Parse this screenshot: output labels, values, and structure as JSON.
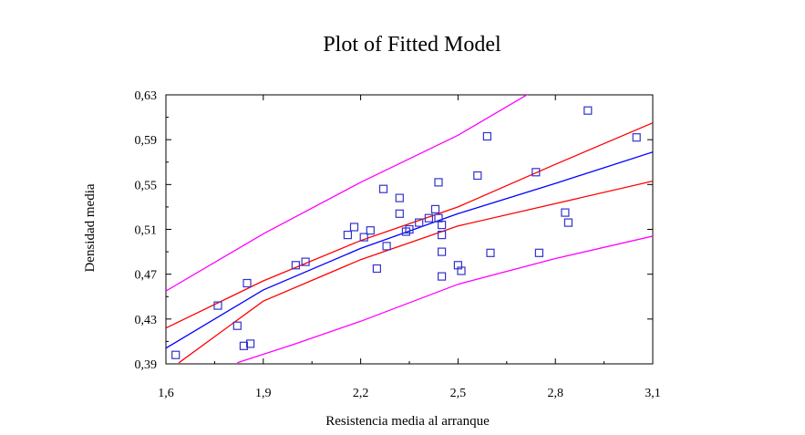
{
  "chart_data": {
    "type": "scatter",
    "title": "Plot of Fitted Model",
    "xlabel": "Resistencia media al arranque",
    "ylabel": "Densidad media",
    "xlim": [
      1.6,
      3.1
    ],
    "ylim": [
      0.39,
      0.63
    ],
    "xticks": [
      1.6,
      1.9,
      2.2,
      2.5,
      2.8,
      3.1
    ],
    "yticks": [
      0.39,
      0.43,
      0.47,
      0.51,
      0.55,
      0.59,
      0.63
    ],
    "xtick_labels": [
      "1,6",
      "1,9",
      "2,2",
      "2,5",
      "2,8",
      "3,1"
    ],
    "ytick_labels": [
      "0,39",
      "0,43",
      "0,47",
      "0,51",
      "0,55",
      "0,59",
      "0,63"
    ],
    "grid": false,
    "colors": {
      "points": "#3333cc",
      "fit": "#0000ff",
      "confidence": "#ff0000",
      "prediction": "#ff00ff",
      "axis": "#000000"
    },
    "points": [
      {
        "x": 1.63,
        "y": 0.398
      },
      {
        "x": 1.76,
        "y": 0.442
      },
      {
        "x": 1.82,
        "y": 0.424
      },
      {
        "x": 1.84,
        "y": 0.406
      },
      {
        "x": 1.86,
        "y": 0.408
      },
      {
        "x": 1.85,
        "y": 0.462
      },
      {
        "x": 2.0,
        "y": 0.478
      },
      {
        "x": 2.03,
        "y": 0.481
      },
      {
        "x": 2.16,
        "y": 0.505
      },
      {
        "x": 2.18,
        "y": 0.512
      },
      {
        "x": 2.21,
        "y": 0.503
      },
      {
        "x": 2.23,
        "y": 0.509
      },
      {
        "x": 2.25,
        "y": 0.475
      },
      {
        "x": 2.27,
        "y": 0.546
      },
      {
        "x": 2.28,
        "y": 0.495
      },
      {
        "x": 2.32,
        "y": 0.538
      },
      {
        "x": 2.32,
        "y": 0.524
      },
      {
        "x": 2.34,
        "y": 0.508
      },
      {
        "x": 2.35,
        "y": 0.51
      },
      {
        "x": 2.38,
        "y": 0.516
      },
      {
        "x": 2.41,
        "y": 0.52
      },
      {
        "x": 2.43,
        "y": 0.528
      },
      {
        "x": 2.44,
        "y": 0.552
      },
      {
        "x": 2.44,
        "y": 0.52
      },
      {
        "x": 2.45,
        "y": 0.514
      },
      {
        "x": 2.45,
        "y": 0.505
      },
      {
        "x": 2.45,
        "y": 0.49
      },
      {
        "x": 2.45,
        "y": 0.468
      },
      {
        "x": 2.5,
        "y": 0.478
      },
      {
        "x": 2.51,
        "y": 0.473
      },
      {
        "x": 2.56,
        "y": 0.558
      },
      {
        "x": 2.59,
        "y": 0.593
      },
      {
        "x": 2.6,
        "y": 0.489
      },
      {
        "x": 2.74,
        "y": 0.561
      },
      {
        "x": 2.75,
        "y": 0.489
      },
      {
        "x": 2.83,
        "y": 0.525
      },
      {
        "x": 2.84,
        "y": 0.516
      },
      {
        "x": 2.9,
        "y": 0.616
      },
      {
        "x": 3.05,
        "y": 0.592
      }
    ],
    "series": [
      {
        "role": "fit",
        "x": [
          1.6,
          1.9,
          2.2,
          2.5,
          2.8,
          3.1
        ],
        "y": [
          0.404,
          0.456,
          0.493,
          0.524,
          0.551,
          0.579
        ]
      },
      {
        "role": "confidence-upper",
        "x": [
          1.6,
          1.9,
          2.2,
          2.5,
          2.8,
          3.1
        ],
        "y": [
          0.422,
          0.464,
          0.5,
          0.53,
          0.568,
          0.605
        ]
      },
      {
        "role": "confidence-lower",
        "x": [
          1.64,
          1.9,
          2.2,
          2.5,
          2.8,
          3.1
        ],
        "y": [
          0.391,
          0.446,
          0.483,
          0.513,
          0.533,
          0.553
        ]
      },
      {
        "role": "prediction-upper",
        "x": [
          1.6,
          1.9,
          2.2,
          2.5,
          2.73
        ],
        "y": [
          0.455,
          0.506,
          0.552,
          0.594,
          0.633
        ]
      },
      {
        "role": "prediction-lower",
        "x": [
          1.82,
          2.0,
          2.2,
          2.5,
          2.8,
          3.1
        ],
        "y": [
          0.391,
          0.408,
          0.428,
          0.461,
          0.484,
          0.504
        ]
      }
    ]
  }
}
